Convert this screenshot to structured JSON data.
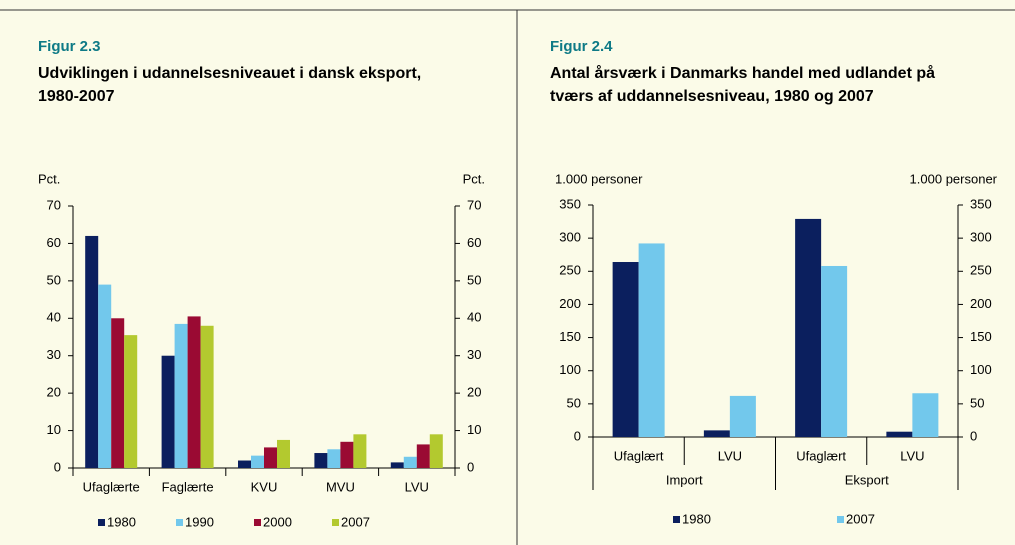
{
  "chart_data": [
    {
      "type": "bar",
      "figure": "Figur 2.3",
      "title": "Udviklingen i udannelsesniveauet i dansk eksport, 1980-2007",
      "ylabel": "Pct.",
      "y2label": "Pct.",
      "categories": [
        "Ufaglærte",
        "Faglærte",
        "KVU",
        "MVU",
        "LVU"
      ],
      "series": [
        {
          "name": "1980",
          "color": "#0b1f5e",
          "values": [
            62,
            30,
            2,
            4,
            1.5
          ]
        },
        {
          "name": "1990",
          "color": "#72c8ec",
          "values": [
            49,
            38.5,
            3.3,
            5,
            3
          ]
        },
        {
          "name": "2000",
          "color": "#9a0a33",
          "values": [
            40,
            40.5,
            5.5,
            7,
            6.3
          ]
        },
        {
          "name": "2007",
          "color": "#b3c92f",
          "values": [
            35.5,
            38,
            7.5,
            9,
            9
          ]
        }
      ],
      "ylim": [
        0,
        70
      ],
      "yticks": [
        0,
        10,
        20,
        30,
        40,
        50,
        60,
        70
      ],
      "y2lim": [
        0,
        70
      ],
      "y2ticks": [
        0,
        10,
        20,
        30,
        40,
        50,
        60,
        70
      ],
      "legend": "bottom"
    },
    {
      "type": "bar",
      "figure": "Figur 2.4",
      "title": "Antal årsværk i Danmarks handel med udlandet på tværs af uddannelsesniveau, 1980 og 2007",
      "ylabel": "1.000 personer",
      "y2label": "1.000 personer",
      "categories": [
        "Ufaglært",
        "LVU",
        "Ufaglært",
        "LVU"
      ],
      "groups": [
        "Import",
        "Eksport"
      ],
      "series": [
        {
          "name": "1980",
          "color": "#0b1f5e",
          "values": [
            264,
            10,
            329,
            8
          ]
        },
        {
          "name": "2007",
          "color": "#72c8ec",
          "values": [
            292,
            62,
            258,
            66
          ]
        }
      ],
      "ylim": [
        0,
        350
      ],
      "yticks": [
        0,
        50,
        100,
        150,
        200,
        250,
        300,
        350
      ],
      "y2lim": [
        0,
        350
      ],
      "y2ticks": [
        0,
        50,
        100,
        150,
        200,
        250,
        300,
        350
      ],
      "legend": "bottom"
    }
  ]
}
